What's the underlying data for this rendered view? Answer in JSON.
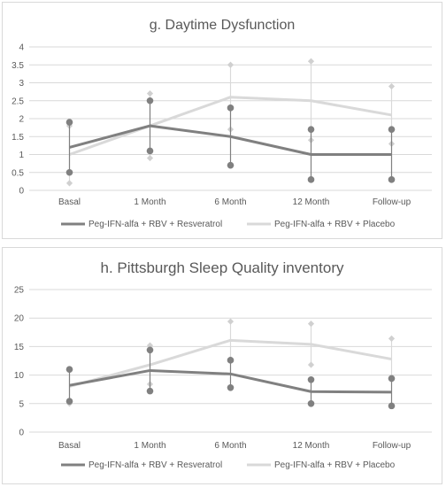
{
  "chart_data": [
    {
      "type": "line",
      "title": "g. Daytime Dysfunction",
      "categories": [
        "Basal",
        "1 Month",
        "6 Month",
        "12 Month",
        "Follow-up"
      ],
      "ylim": [
        0,
        4
      ],
      "yticks": [
        0,
        0.5,
        1,
        1.5,
        2,
        2.5,
        3,
        3.5,
        4
      ],
      "ytick_labels": [
        "0",
        "0.5",
        "1",
        "1.5",
        "2",
        "2.5",
        "3",
        "3.5",
        "4"
      ],
      "grid": true,
      "legend_position": "bottom",
      "series": [
        {
          "name": "Peg-IFN-alfa + RBV + Resveratrol",
          "color": "#808080",
          "values": [
            1.2,
            1.8,
            1.5,
            1.0,
            1.0
          ],
          "upper": [
            1.9,
            2.5,
            2.3,
            1.7,
            1.7
          ],
          "lower": [
            0.5,
            1.1,
            0.7,
            0.3,
            0.3
          ]
        },
        {
          "name": "Peg-IFN-alfa + RBV + Placebo",
          "color": "#d9d9d9",
          "values": [
            1.0,
            1.8,
            2.6,
            2.5,
            2.1
          ],
          "upper": [
            1.8,
            2.7,
            3.5,
            3.6,
            2.9
          ],
          "lower": [
            0.2,
            0.9,
            1.7,
            1.4,
            1.3
          ]
        }
      ]
    },
    {
      "type": "line",
      "title": "h. Pittsburgh Sleep Quality inventory",
      "categories": [
        "Basal",
        "1 Month",
        "6 Month",
        "12 Month",
        "Follow-up"
      ],
      "ylim": [
        0,
        25
      ],
      "yticks": [
        0,
        5,
        10,
        15,
        20,
        25
      ],
      "ytick_labels": [
        "0",
        "5",
        "10",
        "15",
        "20",
        "25"
      ],
      "grid": true,
      "legend_position": "bottom",
      "series": [
        {
          "name": "Peg-IFN-alfa + RBV + Resveratrol",
          "color": "#808080",
          "values": [
            8.2,
            10.8,
            10.2,
            7.1,
            7.0
          ],
          "upper": [
            11.0,
            14.4,
            12.6,
            9.2,
            9.4
          ],
          "lower": [
            5.4,
            7.2,
            7.8,
            5.0,
            4.6
          ]
        },
        {
          "name": "Peg-IFN-alfa + RBV + Placebo",
          "color": "#d9d9d9",
          "values": [
            8.0,
            11.8,
            16.1,
            15.4,
            12.8
          ],
          "upper": [
            11.0,
            15.2,
            19.4,
            19.0,
            16.4
          ],
          "lower": [
            5.0,
            8.4,
            12.8,
            11.8,
            9.2
          ]
        }
      ]
    }
  ]
}
